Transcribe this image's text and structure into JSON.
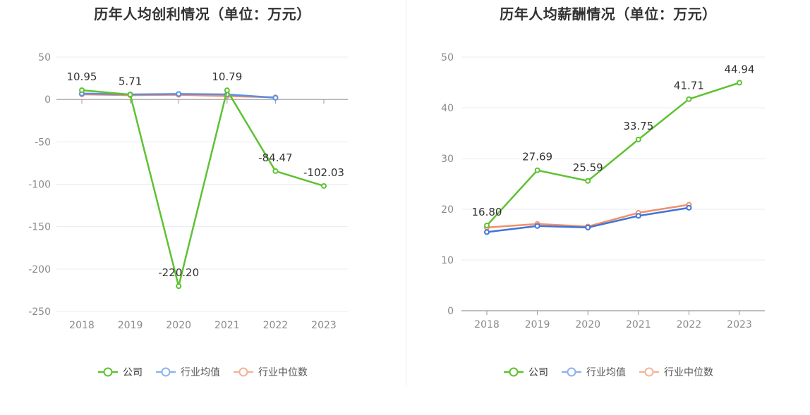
{
  "chart_data": [
    {
      "type": "line",
      "title": "历年人均创利情况（单位：万元）",
      "categories": [
        "2018",
        "2019",
        "2020",
        "2021",
        "2022",
        "2023"
      ],
      "ylim": [
        -250,
        50
      ],
      "yticks": [
        50,
        0,
        -50,
        -100,
        -150,
        -200,
        -250
      ],
      "grid": true,
      "legend_position": "bottom",
      "series": [
        {
          "name": "公司",
          "values": [
            10.95,
            5.71,
            -220.2,
            10.79,
            -84.47,
            -102.03
          ],
          "labels": [
            "10.95",
            "5.71",
            "-220.20",
            "10.79",
            "-84.47",
            "-102.03"
          ],
          "color": "#5ec232"
        },
        {
          "name": "行业均值",
          "values": [
            7.0,
            6.0,
            6.5,
            6.0,
            2.0,
            null
          ],
          "color": "#5b8ee6"
        },
        {
          "name": "行业中位数",
          "values": [
            6.0,
            5.0,
            5.5,
            4.0,
            2.5,
            null
          ],
          "color": "#f0906a"
        }
      ]
    },
    {
      "type": "line",
      "title": "历年人均薪酬情况（单位：万元）",
      "categories": [
        "2018",
        "2019",
        "2020",
        "2021",
        "2022",
        "2023"
      ],
      "ylim": [
        0,
        50
      ],
      "yticks": [
        50,
        40,
        30,
        20,
        10,
        0
      ],
      "grid": true,
      "legend_position": "bottom",
      "series": [
        {
          "name": "公司",
          "values": [
            16.8,
            27.69,
            25.59,
            33.75,
            41.71,
            44.94
          ],
          "labels": [
            "16.80",
            "27.69",
            "25.59",
            "33.75",
            "41.71",
            "44.94"
          ],
          "color": "#5ec232"
        },
        {
          "name": "行业均值",
          "values": [
            15.5,
            16.7,
            16.4,
            18.7,
            20.3,
            null
          ],
          "color": "#3f74d9"
        },
        {
          "name": "行业中位数",
          "values": [
            16.4,
            17.1,
            16.6,
            19.3,
            20.9,
            null
          ],
          "color": "#f0906a"
        }
      ]
    }
  ],
  "legend_colors": {
    "公司": "#5ec232",
    "行业均值": "#8fb1ee",
    "行业中位数": "#f5b39a"
  },
  "axis_color": "#999999",
  "grid_color": "#e8ebf3",
  "tick_text_color": "#8a8a8a",
  "label_text_color": "#333333"
}
